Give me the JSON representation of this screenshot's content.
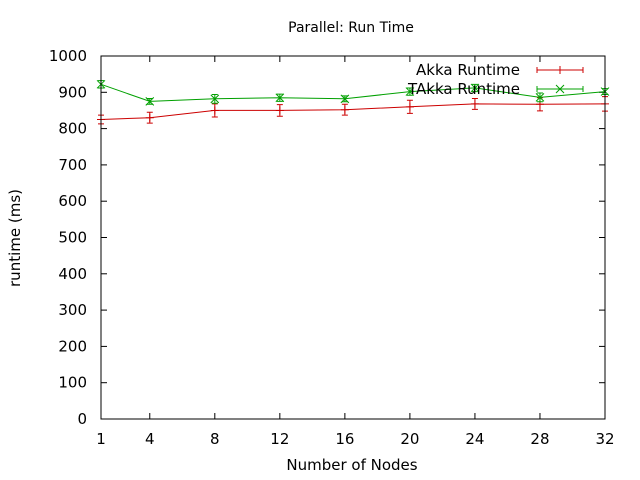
{
  "chart_data": {
    "type": "line",
    "title": "Parallel: Run Time",
    "xlabel": "Number of Nodes",
    "ylabel": "runtime (ms)",
    "xlim": [
      1,
      32
    ],
    "ylim": [
      0,
      1000
    ],
    "x_ticks": [
      1,
      4,
      8,
      12,
      16,
      20,
      24,
      28,
      32
    ],
    "y_ticks": [
      0,
      100,
      200,
      300,
      400,
      500,
      600,
      700,
      800,
      900,
      1000
    ],
    "grid": false,
    "legend_position": "top-right",
    "x": [
      1,
      4,
      8,
      12,
      16,
      20,
      24,
      28,
      32
    ],
    "series": [
      {
        "name": "Akka Runtime",
        "color": "#cc0000",
        "marker": "plus",
        "values": [
          825,
          830,
          850,
          850,
          852,
          860,
          868,
          867,
          868
        ],
        "errors": [
          12,
          15,
          18,
          16,
          15,
          18,
          15,
          18,
          20
        ]
      },
      {
        "name": "TAkka Runtime",
        "color": "#00a000",
        "marker": "cross",
        "values": [
          922,
          875,
          882,
          885,
          882,
          902,
          912,
          886,
          902
        ],
        "errors": [
          10,
          8,
          12,
          10,
          8,
          10,
          10,
          12,
          8
        ]
      }
    ]
  }
}
